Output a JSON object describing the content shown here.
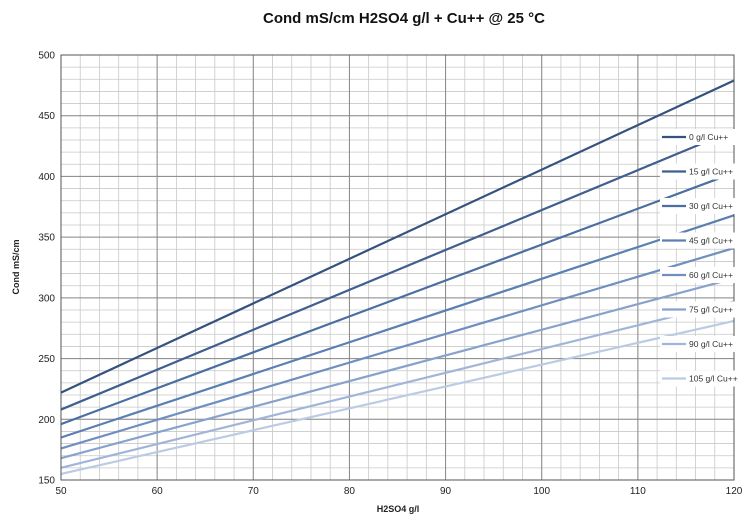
{
  "chart_data": {
    "type": "line",
    "title": "Cond mS/cm H2SO4 g/l + Cu++ @ 25 °C",
    "xlabel": "H2SO4 g/l",
    "ylabel": "Cond mS/cm",
    "xlim": [
      50,
      120
    ],
    "ylim": [
      150,
      500
    ],
    "xticks": [
      50,
      60,
      70,
      80,
      90,
      100,
      110,
      120
    ],
    "yticks": [
      150,
      200,
      250,
      300,
      350,
      400,
      450,
      500
    ],
    "grid": true,
    "legend_position": "right",
    "x": [
      50,
      120
    ],
    "series": [
      {
        "name": "0 g/l Cu++",
        "values": [
          222,
          479
        ],
        "color": "#34527d"
      },
      {
        "name": "15 g/l Cu++",
        "values": [
          208,
          438
        ],
        "color": "#3e5f8f"
      },
      {
        "name": "30 g/l Cu++",
        "values": [
          196,
          403
        ],
        "color": "#4a6ea2"
      },
      {
        "name": "45 g/l Cu++",
        "values": [
          185,
          368
        ],
        "color": "#5b7fb2"
      },
      {
        "name": "60 g/l Cu++",
        "values": [
          176,
          341
        ],
        "color": "#6f8fc0"
      },
      {
        "name": "75 g/l Cu++",
        "values": [
          168,
          316
        ],
        "color": "#87a2cc"
      },
      {
        "name": "90 g/l Cu++",
        "values": [
          160,
          297
        ],
        "color": "#a0b5d8"
      },
      {
        "name": "105 g/l Cu++",
        "values": [
          155,
          281
        ],
        "color": "#bccbe4"
      }
    ]
  }
}
